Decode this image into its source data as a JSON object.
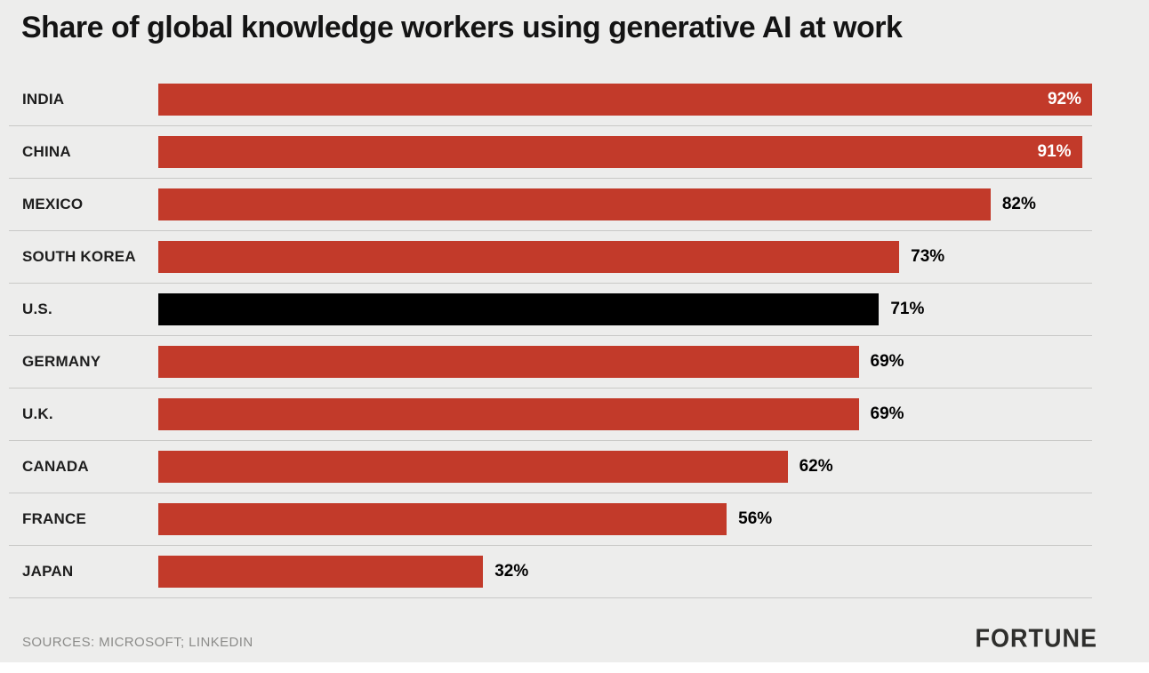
{
  "title": "Share of global knowledge workers using generative AI at work",
  "sources": "SOURCES:  MICROSOFT; LINKEDIN",
  "brand": "FORTUNE",
  "colors": {
    "bar": "#c23a2a",
    "highlight": "#000000",
    "background": "#ededec",
    "value_label_inside": "#ffffff",
    "value_label_outside": "#000000",
    "separator": "#c9c9c7"
  },
  "chart_data": {
    "type": "bar",
    "orientation": "horizontal",
    "title": "Share of global knowledge workers using generative AI at work",
    "categories": [
      "INDIA",
      "CHINA",
      "MEXICO",
      "SOUTH KOREA",
      "U.S.",
      "GERMANY",
      "U.K.",
      "CANADA",
      "FRANCE",
      "JAPAN"
    ],
    "values": [
      92,
      91,
      82,
      73,
      71,
      69,
      69,
      62,
      56,
      32
    ],
    "value_suffix": "%",
    "highlight_category": "U.S.",
    "xlim": [
      0,
      100
    ],
    "grid": false,
    "legend": false,
    "value_labels": "end-of-bar, inside bar in white for the two longest bars, outside in black otherwise"
  }
}
